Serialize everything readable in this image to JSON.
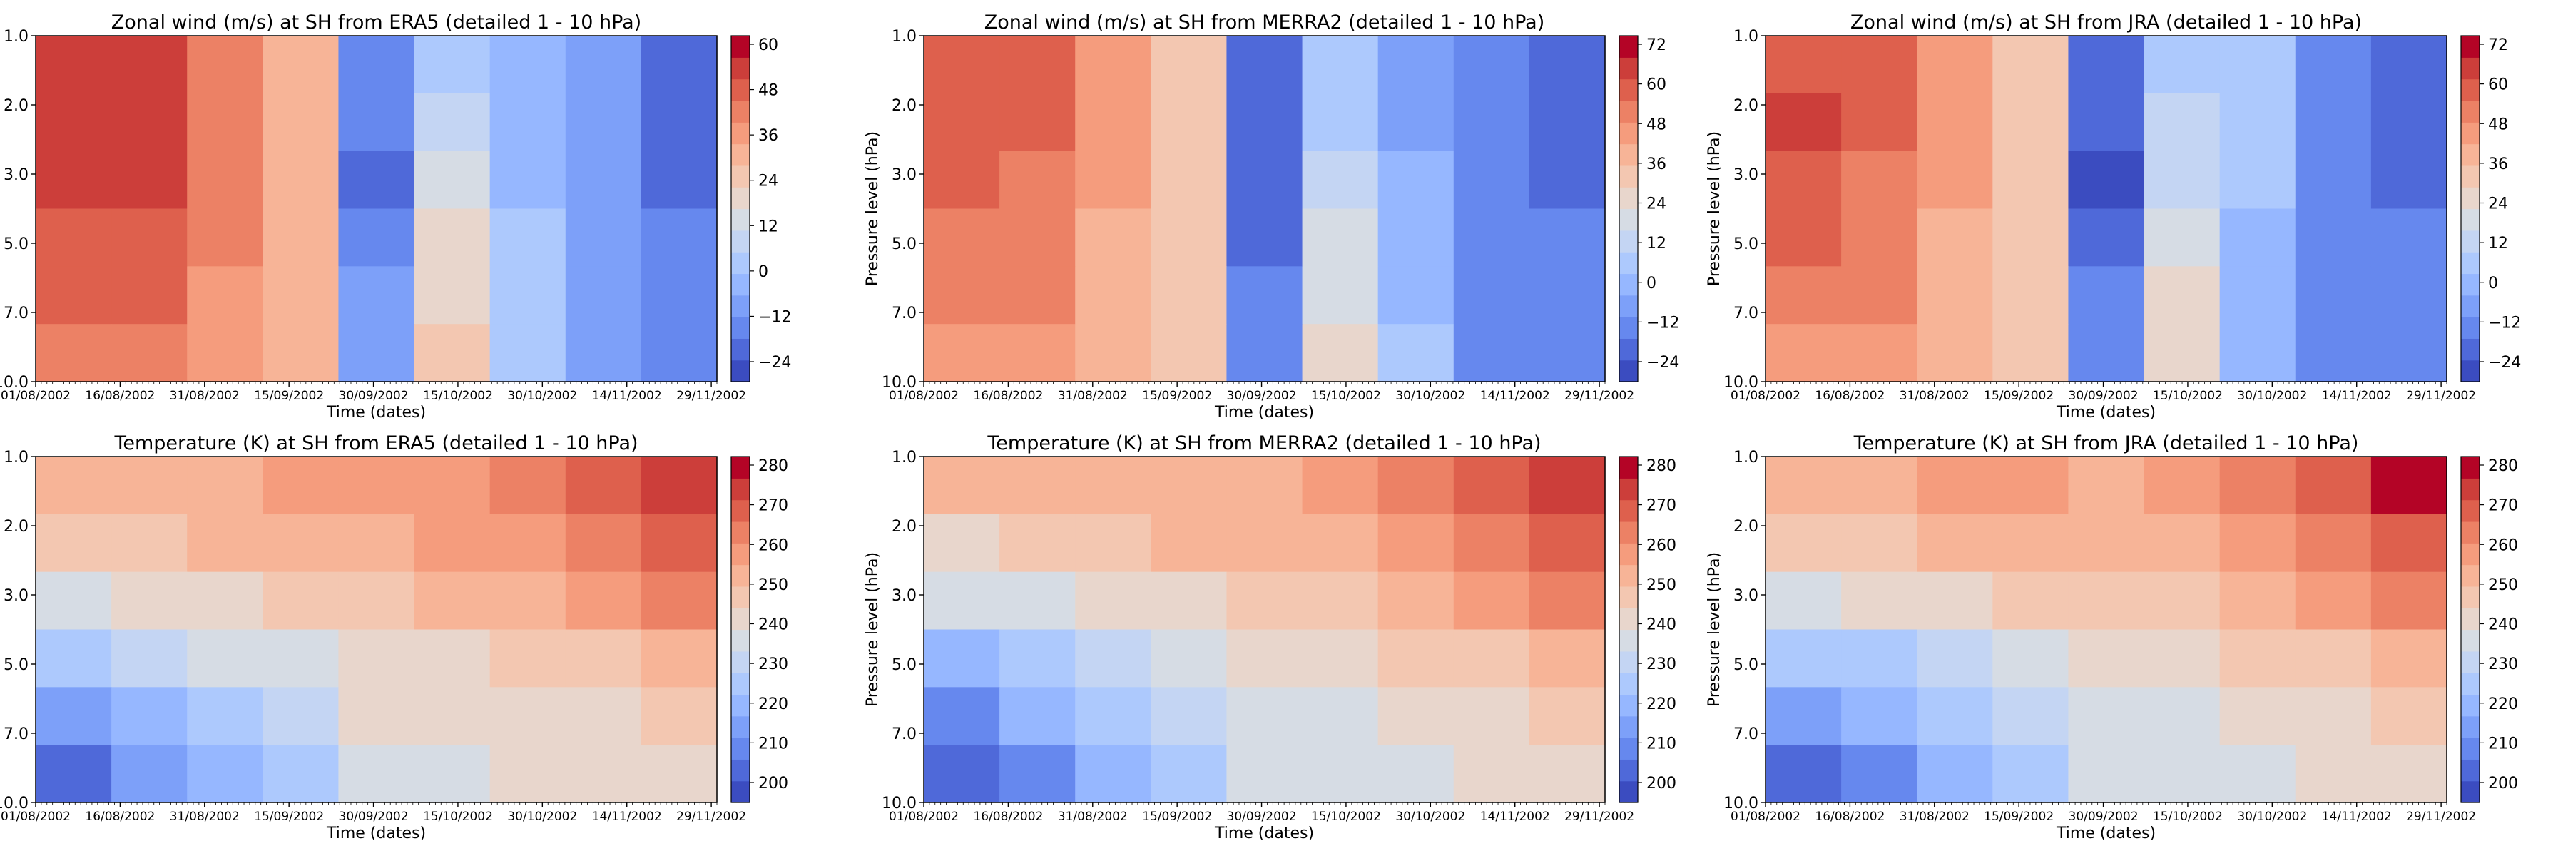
{
  "figure": {
    "shared": {
      "xlabel": "Time (dates)",
      "ylabel": "Pressure level (hPa)",
      "y_ticks": [
        "1.0",
        "2.0",
        "3.0",
        "5.0",
        "7.0",
        "10.0"
      ],
      "x_ticks": [
        "01/08/2002",
        "16/08/2002",
        "31/08/2002",
        "15/09/2002",
        "30/09/2002",
        "15/10/2002",
        "30/10/2002",
        "14/11/2002",
        "29/11/2002"
      ]
    },
    "colors": {
      "cmap": [
        "#3b4cc0",
        "#4f69d9",
        "#6688ee",
        "#7da0f9",
        "#96b7ff",
        "#adc9fd",
        "#c4d5f3",
        "#d6dce4",
        "#e8d6cc",
        "#f3c7b1",
        "#f7b497",
        "#f59c7d",
        "#ec8165",
        "#de604d",
        "#cc3e3a",
        "#b40426"
      ]
    }
  },
  "chart_data": [
    {
      "type": "heatmap",
      "title": "Zonal wind (m/s) at SH from ERA5 (detailed 1 - 10 hPa)",
      "xlabel": "Time (dates)",
      "ylabel": "Pressure level (hPa)",
      "x": [
        "01/08/2002",
        "16/08/2002",
        "31/08/2002",
        "15/09/2002",
        "30/09/2002",
        "15/10/2002",
        "30/10/2002",
        "14/11/2002",
        "29/11/2002"
      ],
      "y": [
        "1.0",
        "2.0",
        "3.0",
        "5.0",
        "7.0",
        "10.0"
      ],
      "values": [
        [
          58,
          56,
          46,
          34,
          -14,
          4,
          -6,
          -12,
          -20
        ],
        [
          58,
          55,
          45,
          34,
          -18,
          8,
          -4,
          -12,
          -20
        ],
        [
          56,
          54,
          44,
          33,
          -20,
          12,
          -2,
          -12,
          -20
        ],
        [
          52,
          51,
          42,
          32,
          -16,
          18,
          0,
          -12,
          -18
        ],
        [
          48,
          49,
          41,
          32,
          -12,
          22,
          2,
          -12,
          -16
        ],
        [
          44,
          47,
          40,
          33,
          -8,
          24,
          4,
          -12,
          -14
        ]
      ],
      "colorbar_ticks": [
        "60",
        "48",
        "36",
        "24",
        "12",
        "0",
        "−12",
        "−24"
      ],
      "vmin": -30,
      "vmax": 66
    },
    {
      "type": "heatmap",
      "title": "Zonal wind (m/s) at SH from MERRA2 (detailed 1 - 10 hPa)",
      "xlabel": "Time (dates)",
      "ylabel": "Pressure level (hPa)",
      "x": [
        "01/08/2002",
        "16/08/2002",
        "31/08/2002",
        "15/09/2002",
        "30/09/2002",
        "15/10/2002",
        "30/10/2002",
        "14/11/2002",
        "29/11/2002"
      ],
      "y": [
        "1.0",
        "2.0",
        "3.0",
        "5.0",
        "7.0",
        "10.0"
      ],
      "values": [
        [
          60,
          58,
          48,
          36,
          -18,
          6,
          -6,
          -10,
          -18
        ],
        [
          62,
          58,
          47,
          36,
          -20,
          10,
          -4,
          -10,
          -18
        ],
        [
          60,
          56,
          46,
          35,
          -22,
          14,
          -2,
          -10,
          -18
        ],
        [
          56,
          53,
          44,
          34,
          -18,
          20,
          0,
          -10,
          -16
        ],
        [
          52,
          51,
          43,
          34,
          -14,
          22,
          2,
          -10,
          -14
        ],
        [
          48,
          49,
          42,
          35,
          -10,
          24,
          4,
          -10,
          -12
        ]
      ],
      "colorbar_ticks": [
        "72",
        "60",
        "48",
        "36",
        "24",
        "12",
        "0",
        "−12",
        "−24"
      ],
      "vmin": -30,
      "vmax": 78
    },
    {
      "type": "heatmap",
      "title": "Zonal wind (m/s) at SH from JRA (detailed 1 - 10 hPa)",
      "xlabel": "Time (dates)",
      "ylabel": "Pressure level (hPa)",
      "x": [
        "01/08/2002",
        "16/08/2002",
        "31/08/2002",
        "15/09/2002",
        "30/09/2002",
        "15/10/2002",
        "30/10/2002",
        "14/11/2002",
        "29/11/2002"
      ],
      "y": [
        "1.0",
        "2.0",
        "3.0",
        "5.0",
        "7.0",
        "10.0"
      ],
      "values": [
        [
          62,
          58,
          48,
          36,
          -18,
          6,
          10,
          -10,
          -20
        ],
        [
          66,
          58,
          47,
          36,
          -22,
          12,
          8,
          -10,
          -20
        ],
        [
          64,
          56,
          46,
          35,
          -24,
          16,
          6,
          -10,
          -18
        ],
        [
          58,
          53,
          44,
          34,
          -18,
          22,
          2,
          -10,
          -16
        ],
        [
          54,
          51,
          43,
          34,
          -14,
          24,
          0,
          -10,
          -14
        ],
        [
          50,
          49,
          42,
          35,
          -10,
          24,
          2,
          -10,
          -12
        ]
      ],
      "colorbar_ticks": [
        "72",
        "60",
        "48",
        "36",
        "24",
        "12",
        "0",
        "−12",
        "−24"
      ],
      "vmin": -30,
      "vmax": 78
    },
    {
      "type": "heatmap",
      "title": "Temperature (K) at SH from ERA5 (detailed 1 - 10 hPa)",
      "xlabel": "Time (dates)",
      "ylabel": "Pressure level (hPa)",
      "x": [
        "01/08/2002",
        "16/08/2002",
        "31/08/2002",
        "15/09/2002",
        "30/09/2002",
        "15/10/2002",
        "30/10/2002",
        "14/11/2002",
        "29/11/2002"
      ],
      "y": [
        "1.0",
        "2.0",
        "3.0",
        "5.0",
        "7.0",
        "10.0"
      ],
      "values": [
        [
          252,
          254,
          255,
          258,
          258,
          260,
          263,
          268,
          276
        ],
        [
          248,
          250,
          252,
          254,
          255,
          257,
          260,
          264,
          270
        ],
        [
          238,
          242,
          245,
          248,
          250,
          252,
          255,
          258,
          263
        ],
        [
          228,
          232,
          236,
          240,
          245,
          246,
          248,
          251,
          254
        ],
        [
          218,
          224,
          230,
          235,
          242,
          242,
          244,
          246,
          248
        ],
        [
          208,
          216,
          224,
          230,
          240,
          240,
          241,
          242,
          244
        ]
      ],
      "colorbar_ticks": [
        "280",
        "270",
        "260",
        "250",
        "240",
        "230",
        "220",
        "210",
        "200"
      ],
      "vmin": 200,
      "vmax": 282
    },
    {
      "type": "heatmap",
      "title": "Temperature (K) at SH from MERRA2 (detailed 1 - 10 hPa)",
      "xlabel": "Time (dates)",
      "ylabel": "Pressure level (hPa)",
      "x": [
        "01/08/2002",
        "16/08/2002",
        "31/08/2002",
        "15/09/2002",
        "30/09/2002",
        "15/10/2002",
        "30/10/2002",
        "14/11/2002",
        "29/11/2002"
      ],
      "y": [
        "1.0",
        "2.0",
        "3.0",
        "5.0",
        "7.0",
        "10.0"
      ],
      "values": [
        [
          254,
          256,
          256,
          259,
          259,
          262,
          266,
          272,
          280
        ],
        [
          248,
          250,
          252,
          254,
          255,
          258,
          262,
          266,
          272
        ],
        [
          238,
          242,
          245,
          248,
          250,
          252,
          256,
          260,
          266
        ],
        [
          226,
          230,
          235,
          240,
          244,
          246,
          249,
          252,
          256
        ],
        [
          216,
          222,
          228,
          234,
          240,
          242,
          244,
          246,
          250
        ],
        [
          206,
          214,
          222,
          228,
          238,
          240,
          242,
          243,
          245
        ]
      ],
      "colorbar_ticks": [
        "280",
        "270",
        "260",
        "250",
        "240",
        "230",
        "220",
        "210",
        "200"
      ],
      "vmin": 200,
      "vmax": 286
    },
    {
      "type": "heatmap",
      "title": "Temperature (K) at SH from JRA (detailed 1 - 10 hPa)",
      "xlabel": "Time (dates)",
      "ylabel": "Pressure level (hPa)",
      "x": [
        "01/08/2002",
        "16/08/2002",
        "31/08/2002",
        "15/09/2002",
        "30/09/2002",
        "15/10/2002",
        "30/10/2002",
        "14/11/2002",
        "29/11/2002"
      ],
      "y": [
        "1.0",
        "2.0",
        "3.0",
        "5.0",
        "7.0",
        "10.0"
      ],
      "values": [
        [
          256,
          258,
          260,
          260,
          258,
          262,
          266,
          272,
          282
        ],
        [
          250,
          252,
          254,
          255,
          255,
          258,
          262,
          266,
          274
        ],
        [
          240,
          244,
          246,
          249,
          250,
          252,
          256,
          260,
          266
        ],
        [
          228,
          232,
          236,
          240,
          244,
          246,
          249,
          252,
          256
        ],
        [
          218,
          224,
          230,
          234,
          240,
          242,
          244,
          246,
          250
        ],
        [
          208,
          216,
          222,
          228,
          238,
          240,
          241,
          243,
          245
        ]
      ],
      "colorbar_ticks": [
        "280",
        "270",
        "260",
        "250",
        "240",
        "230",
        "220",
        "210",
        "200"
      ],
      "vmin": 200,
      "vmax": 286
    }
  ]
}
